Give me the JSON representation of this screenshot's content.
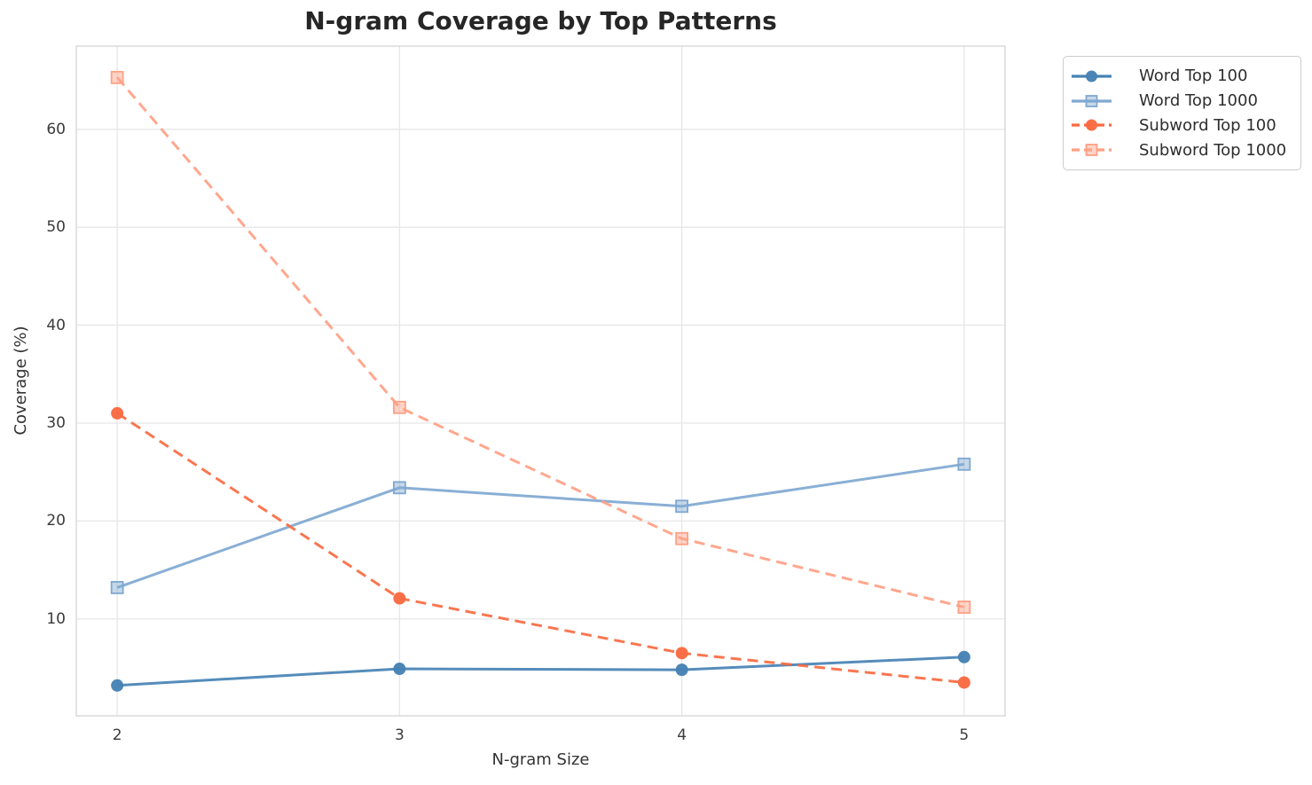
{
  "chart_data": {
    "type": "line",
    "title": "N-gram Coverage by Top Patterns",
    "xlabel": "N-gram Size",
    "ylabel": "Coverage (%)",
    "x": [
      2,
      3,
      4,
      5
    ],
    "x_ticks": [
      2,
      3,
      4,
      5
    ],
    "y_ticks": [
      10,
      20,
      30,
      40,
      50,
      60
    ],
    "xlim": [
      1.855,
      5.145
    ],
    "ylim": [
      0.1,
      68.5
    ],
    "grid": true,
    "legend_position": "outside-top-right",
    "series": [
      {
        "name": "Word Top 100",
        "values": [
          3.2,
          4.9,
          4.8,
          6.1
        ],
        "color": "#4682b4",
        "line_style": "solid",
        "marker": "circle"
      },
      {
        "name": "Word Top 1000",
        "values": [
          13.2,
          23.4,
          21.5,
          25.8
        ],
        "color": "#7fa8d1",
        "line_style": "solid",
        "marker": "square"
      },
      {
        "name": "Subword Top 100",
        "values": [
          31.0,
          12.1,
          6.5,
          3.5
        ],
        "color": "#f96a41",
        "line_style": "dashed",
        "marker": "circle"
      },
      {
        "name": "Subword Top 1000",
        "values": [
          65.3,
          31.6,
          18.2,
          11.2
        ],
        "color": "#ffa084",
        "line_style": "dashed",
        "marker": "square"
      }
    ]
  }
}
